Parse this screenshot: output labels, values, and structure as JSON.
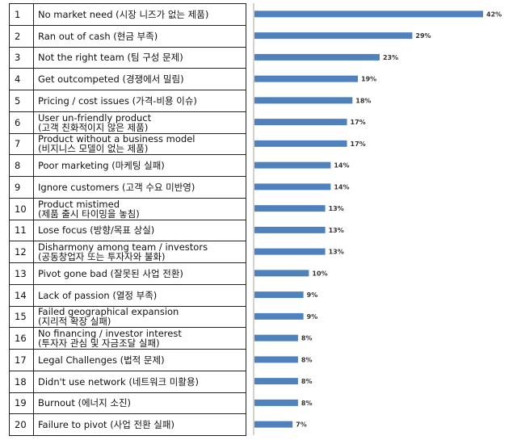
{
  "chart_data": {
    "type": "bar",
    "orientation": "horizontal",
    "rows": [
      {
        "rank": "1",
        "lines": [
          "No market need (시장 니즈가 없는 제품)"
        ],
        "value": 42,
        "label": "42%"
      },
      {
        "rank": "2",
        "lines": [
          "Ran out of cash (현금 부족)"
        ],
        "value": 29,
        "label": "29%"
      },
      {
        "rank": "3",
        "lines": [
          "Not the right team (팀 구성 문제)"
        ],
        "value": 23,
        "label": "23%"
      },
      {
        "rank": "4",
        "lines": [
          "Get outcompeted (경쟁에서 밀림)"
        ],
        "value": 19,
        "label": "19%"
      },
      {
        "rank": "5",
        "lines": [
          "Pricing / cost issues (가격-비용 이슈)"
        ],
        "value": 18,
        "label": "18%"
      },
      {
        "rank": "6",
        "lines": [
          "User un-friendly product",
          "(고객 친화적이지 않은 제품)"
        ],
        "value": 17,
        "label": "17%"
      },
      {
        "rank": "7",
        "lines": [
          "Product without a business model",
          "(비지니스 모델이 없는 제품)"
        ],
        "value": 17,
        "label": "17%"
      },
      {
        "rank": "8",
        "lines": [
          "Poor marketing (마케팅 실패)"
        ],
        "value": 14,
        "label": "14%"
      },
      {
        "rank": "9",
        "lines": [
          "Ignore customers (고객 수요 미반영)"
        ],
        "value": 14,
        "label": "14%"
      },
      {
        "rank": "10",
        "lines": [
          "Product mistimed",
          "(제품 출시 타이밍을 놓침)"
        ],
        "value": 13,
        "label": "13%"
      },
      {
        "rank": "11",
        "lines": [
          "Lose focus (방향/목표 상실)"
        ],
        "value": 13,
        "label": "13%"
      },
      {
        "rank": "12",
        "lines": [
          "Disharmony among team / investors",
          "(공동창업자 또는 투자자와 불화)"
        ],
        "value": 13,
        "label": "13%"
      },
      {
        "rank": "13",
        "lines": [
          "Pivot gone bad (잘못된 사업 전환)"
        ],
        "value": 10,
        "label": "10%"
      },
      {
        "rank": "14",
        "lines": [
          "Lack of passion (열정 부족)"
        ],
        "value": 9,
        "label": "9%"
      },
      {
        "rank": "15",
        "lines": [
          "Failed geographical expansion",
          "(지리적 확장 실패)"
        ],
        "value": 9,
        "label": "9%"
      },
      {
        "rank": "16",
        "lines": [
          "No financing / investor interest",
          "(투자자 관심 및 자금조달 실패)"
        ],
        "value": 8,
        "label": "8%"
      },
      {
        "rank": "17",
        "lines": [
          "Legal Challenges (법적 문제)"
        ],
        "value": 8,
        "label": "8%"
      },
      {
        "rank": "18",
        "lines": [
          "Didn't use network (네트워크 미활용)"
        ],
        "value": 8,
        "label": "8%"
      },
      {
        "rank": "19",
        "lines": [
          "Burnout (에너지 소진)"
        ],
        "value": 8,
        "label": "8%"
      },
      {
        "rank": "20",
        "lines": [
          "Failure to pivot (사업 전환 실패)"
        ],
        "value": 7,
        "label": "7%"
      }
    ],
    "bar_color": "#4f81bd",
    "axis_color": "#a6a6a6",
    "xlim": [
      0,
      42
    ]
  }
}
